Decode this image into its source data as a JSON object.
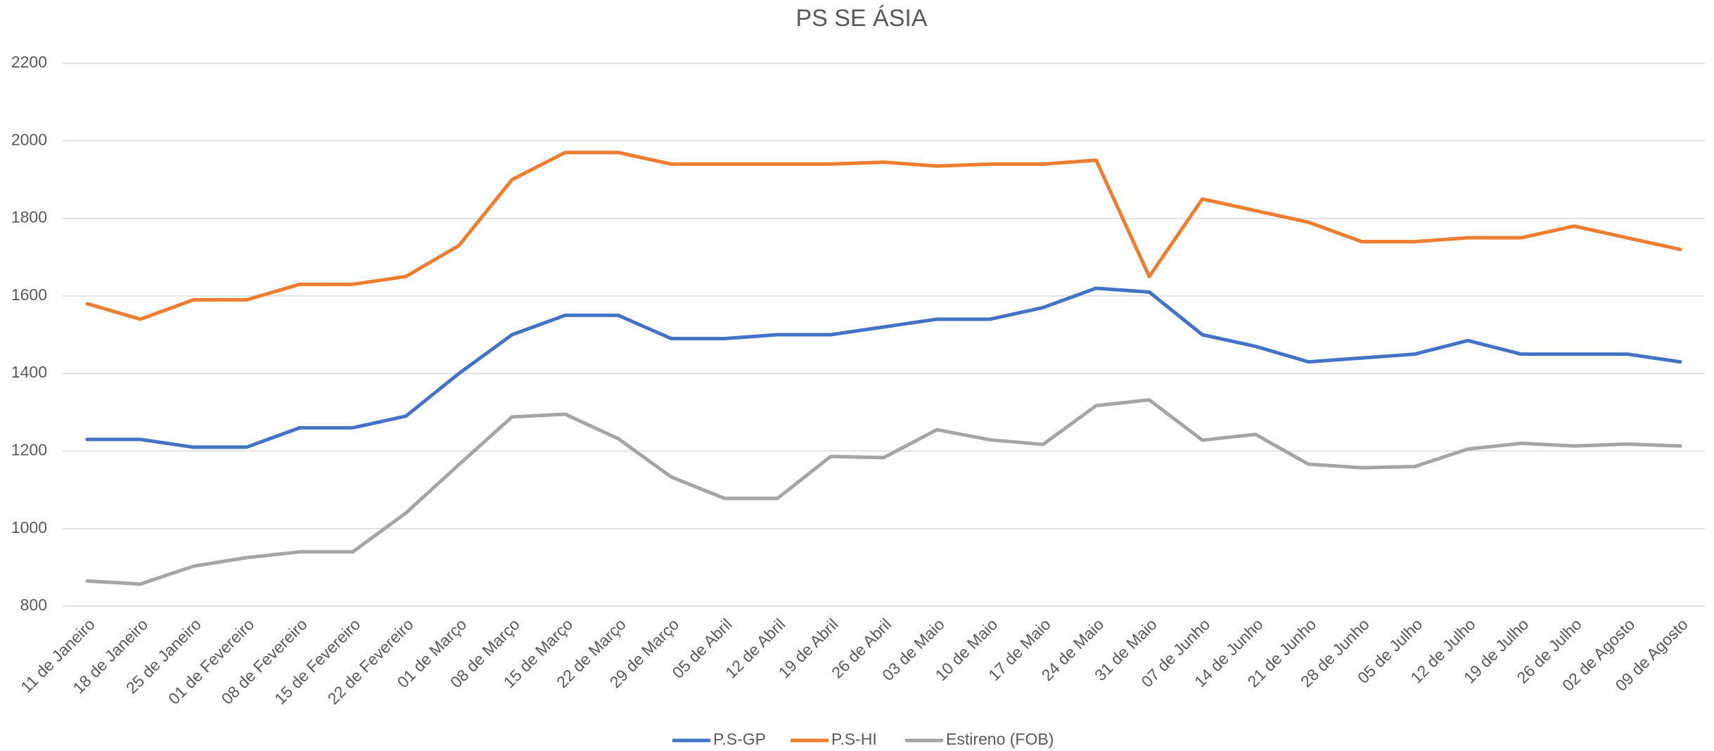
{
  "chart_data": {
    "type": "line",
    "title": "PS SE ÁSIA",
    "categories": [
      "11 de Janeiro",
      "18 de Janeiro",
      "25 de Janeiro",
      "01 de Fevereiro",
      "08 de Fevereiro",
      "15 de Fevereiro",
      "22 de Fevereiro",
      "01 de Março",
      "08 de Março",
      "15 de Março",
      "22 de Março",
      "29 de Março",
      "05 de Abril",
      "12 de Abril",
      "19 de Abril",
      "26 de Abril",
      "03 de Maio",
      "10 de Maio",
      "17 de Maio",
      "24 de Maio",
      "31 de Maio",
      "07 de Junho",
      "14 de Junho",
      "21 de Junho",
      "28 de Junho",
      "05 de Julho",
      "12 de Julho",
      "19 de Julho",
      "26 de Julho",
      "02 de Agosto",
      "09 de Agosto"
    ],
    "series": [
      {
        "name": "P.S-GP",
        "color": "#4472c4",
        "values": [
          1230,
          1230,
          1210,
          1210,
          1260,
          1260,
          1290,
          1400,
          1500,
          1550,
          1550,
          1490,
          1490,
          1500,
          1500,
          1520,
          1540,
          1540,
          1570,
          1620,
          1610,
          1500,
          1470,
          1430,
          1440,
          1450,
          1485,
          1450,
          1450,
          1450,
          1430
        ]
      },
      {
        "name": "P.S-HI",
        "color": "#ed7d31",
        "values": [
          1580,
          1540,
          1590,
          1590,
          1630,
          1630,
          1650,
          1730,
          1900,
          1970,
          1970,
          1940,
          1940,
          1940,
          1940,
          1945,
          1935,
          1940,
          1940,
          1950,
          1650,
          1850,
          1820,
          1790,
          1740,
          1740,
          1750,
          1750,
          1780,
          1750,
          1720
        ]
      },
      {
        "name": "Estireno (FOB)",
        "color": "#a5a5a5",
        "values": [
          865,
          857,
          903,
          925,
          940,
          940,
          1040,
          1165,
          1288,
          1295,
          1232,
          1133,
          1078,
          1078,
          1186,
          1183,
          1255,
          1229,
          1217,
          1317,
          1332,
          1228,
          1243,
          1166,
          1157,
          1160,
          1205,
          1220,
          1213,
          1218,
          1213
        ]
      }
    ],
    "ylim": [
      800,
      2200
    ],
    "yticks": [
      800,
      1000,
      1200,
      1400,
      1600,
      1800,
      2000,
      2200
    ],
    "grid": true,
    "legend": "bottom"
  }
}
